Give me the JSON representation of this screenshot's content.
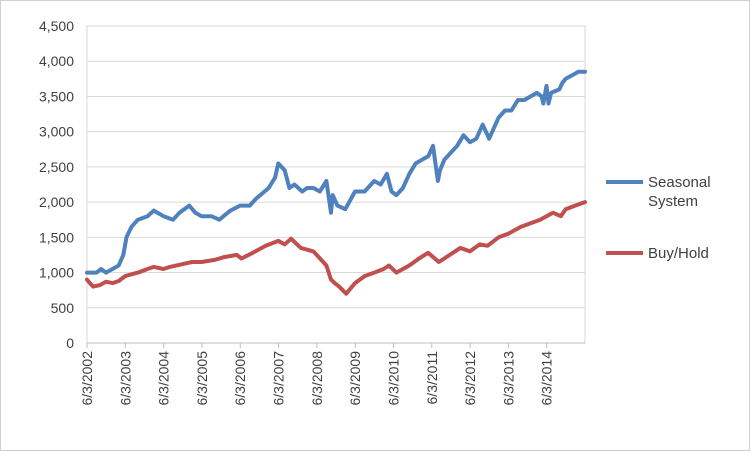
{
  "chart_data": {
    "type": "line",
    "title": "",
    "xlabel": "",
    "ylabel": "",
    "ylim": [
      0,
      4500
    ],
    "yticks": [
      0,
      500,
      1000,
      1500,
      2000,
      2500,
      3000,
      3500,
      4000,
      4500
    ],
    "ytick_labels": [
      "0",
      "500",
      "1,000",
      "1,500",
      "2,000",
      "2,500",
      "3,000",
      "3,500",
      "4,000",
      "4,500"
    ],
    "xlim": [
      "2002-06-03",
      "2015-06-03"
    ],
    "xtick_labels": [
      "6/3/2002",
      "6/3/2003",
      "6/3/2004",
      "6/3/2005",
      "6/3/2006",
      "6/3/2007",
      "6/3/2008",
      "6/3/2009",
      "6/3/2010",
      "6/3/2011",
      "6/3/2012",
      "6/3/2013",
      "6/3/2014"
    ],
    "xtick_dates": [
      "2002-06-03",
      "2003-06-03",
      "2004-06-03",
      "2005-06-03",
      "2006-06-03",
      "2007-06-03",
      "2008-06-03",
      "2009-06-03",
      "2010-06-03",
      "2011-06-03",
      "2012-06-03",
      "2013-06-03",
      "2014-06-03"
    ],
    "grid": true,
    "legend_position": "right",
    "series": [
      {
        "name": "Seasonal System",
        "color": "#4f81bd",
        "x": [
          "2002-06-03",
          "2002-09-01",
          "2002-10-15",
          "2002-12-01",
          "2003-02-01",
          "2003-04-01",
          "2003-05-15",
          "2003-06-15",
          "2003-08-01",
          "2003-10-01",
          "2004-01-01",
          "2004-03-01",
          "2004-06-01",
          "2004-09-01",
          "2004-11-01",
          "2005-02-01",
          "2005-04-01",
          "2005-06-01",
          "2005-09-01",
          "2005-11-15",
          "2006-03-01",
          "2006-06-01",
          "2006-09-01",
          "2006-11-01",
          "2007-03-01",
          "2007-05-01",
          "2007-06-01",
          "2007-08-01",
          "2007-09-15",
          "2007-11-01",
          "2008-01-15",
          "2008-03-01",
          "2008-05-01",
          "2008-07-01",
          "2008-09-01",
          "2008-10-15",
          "2008-11-01",
          "2008-12-15",
          "2009-03-01",
          "2009-06-01",
          "2009-09-01",
          "2009-12-01",
          "2010-02-01",
          "2010-04-01",
          "2010-05-15",
          "2010-07-01",
          "2010-09-01",
          "2010-11-01",
          "2011-01-01",
          "2011-03-01",
          "2011-05-01",
          "2011-06-15",
          "2011-08-01",
          "2011-08-20",
          "2011-10-01",
          "2011-12-01",
          "2012-02-01",
          "2012-04-01",
          "2012-06-01",
          "2012-08-01",
          "2012-10-01",
          "2012-12-01",
          "2013-03-01",
          "2013-05-01",
          "2013-07-01",
          "2013-09-01",
          "2013-11-01",
          "2014-01-01",
          "2014-03-01",
          "2014-04-15",
          "2014-05-01",
          "2014-06-01",
          "2014-06-20",
          "2014-07-15",
          "2014-10-01",
          "2014-11-01",
          "2014-12-01",
          "2015-02-01",
          "2015-04-01",
          "2015-06-03"
        ],
        "y": [
          1000,
          1000,
          1050,
          1000,
          1050,
          1100,
          1250,
          1500,
          1650,
          1750,
          1800,
          1880,
          1800,
          1750,
          1850,
          1950,
          1850,
          1800,
          1800,
          1750,
          1880,
          1950,
          1950,
          2050,
          2200,
          2350,
          2550,
          2450,
          2200,
          2250,
          2150,
          2200,
          2200,
          2150,
          2300,
          1850,
          2100,
          1950,
          1900,
          2150,
          2150,
          2300,
          2250,
          2400,
          2150,
          2100,
          2200,
          2400,
          2550,
          2600,
          2650,
          2800,
          2300,
          2450,
          2600,
          2700,
          2800,
          2950,
          2850,
          2900,
          3100,
          2900,
          3200,
          3300,
          3300,
          3450,
          3450,
          3500,
          3550,
          3500,
          3400,
          3650,
          3400,
          3550,
          3600,
          3700,
          3750,
          3800,
          3850,
          3850
        ]
      },
      {
        "name": "Buy/Hold",
        "color": "#c0504d",
        "x": [
          "2002-06-03",
          "2002-07-01",
          "2002-08-01",
          "2002-10-01",
          "2002-12-01",
          "2003-02-01",
          "2003-04-01",
          "2003-06-01",
          "2003-10-01",
          "2004-01-01",
          "2004-03-01",
          "2004-06-01",
          "2004-08-01",
          "2004-12-01",
          "2005-03-01",
          "2005-06-01",
          "2005-10-01",
          "2006-01-01",
          "2006-05-01",
          "2006-06-15",
          "2006-10-01",
          "2007-02-01",
          "2007-06-01",
          "2007-08-01",
          "2007-10-01",
          "2008-01-01",
          "2008-05-01",
          "2008-06-01",
          "2008-09-01",
          "2008-10-15",
          "2008-11-20",
          "2009-01-01",
          "2009-03-09",
          "2009-06-01",
          "2009-09-01",
          "2009-12-01",
          "2010-03-01",
          "2010-04-20",
          "2010-07-01",
          "2010-11-01",
          "2011-02-01",
          "2011-04-29",
          "2011-08-10",
          "2011-10-01",
          "2012-03-01",
          "2012-06-01",
          "2012-09-01",
          "2012-11-15",
          "2013-03-01",
          "2013-06-01",
          "2013-10-01",
          "2014-01-01",
          "2014-04-01",
          "2014-08-01",
          "2014-10-15",
          "2014-12-01",
          "2015-03-01",
          "2015-06-03"
        ],
        "y": [
          900,
          850,
          800,
          820,
          870,
          850,
          880,
          950,
          1000,
          1050,
          1080,
          1050,
          1080,
          1120,
          1150,
          1150,
          1180,
          1220,
          1250,
          1200,
          1280,
          1380,
          1450,
          1400,
          1480,
          1350,
          1300,
          1250,
          1100,
          900,
          850,
          800,
          700,
          850,
          950,
          1000,
          1050,
          1100,
          1000,
          1100,
          1200,
          1280,
          1150,
          1200,
          1350,
          1300,
          1400,
          1380,
          1500,
          1550,
          1650,
          1700,
          1750,
          1850,
          1800,
          1900,
          1950,
          2000
        ]
      }
    ]
  }
}
